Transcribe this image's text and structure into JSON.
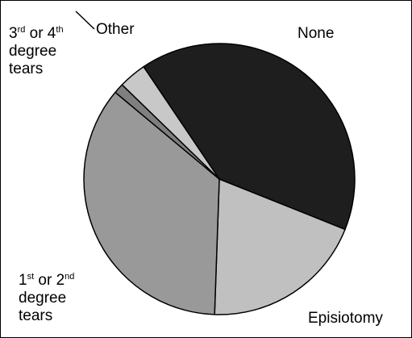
{
  "chart_data": {
    "type": "pie",
    "title": "",
    "start_angle_deg": 124,
    "direction": "clockwise",
    "slices": [
      {
        "key": "none",
        "label": "None",
        "value": 40.5,
        "color": "#1e1e1e"
      },
      {
        "key": "episiotomy",
        "label": "Episiotomy",
        "value": 19.5,
        "color": "#c0c0c0"
      },
      {
        "key": "first",
        "label": "1st or 2nd degree tears",
        "value": 35.5,
        "color": "#999999"
      },
      {
        "key": "third",
        "label": "3rd or 4th degree tears",
        "value": 1.2,
        "color": "#7f7f7f"
      },
      {
        "key": "other",
        "label": "Other",
        "value": 3.3,
        "color": "#c8c8c8"
      }
    ]
  },
  "labels": {
    "none": "None",
    "episiotomy": "Episiotomy",
    "first": {
      "num": "1",
      "sup1": "st",
      "mid": " or 2",
      "sup2": "nd",
      "line2": "degree",
      "line3": "tears"
    },
    "third": {
      "num": "3",
      "sup1": "rd",
      "mid": " or 4",
      "sup2": "th",
      "line2": "degree",
      "line3": "tears"
    },
    "other": "Other"
  }
}
